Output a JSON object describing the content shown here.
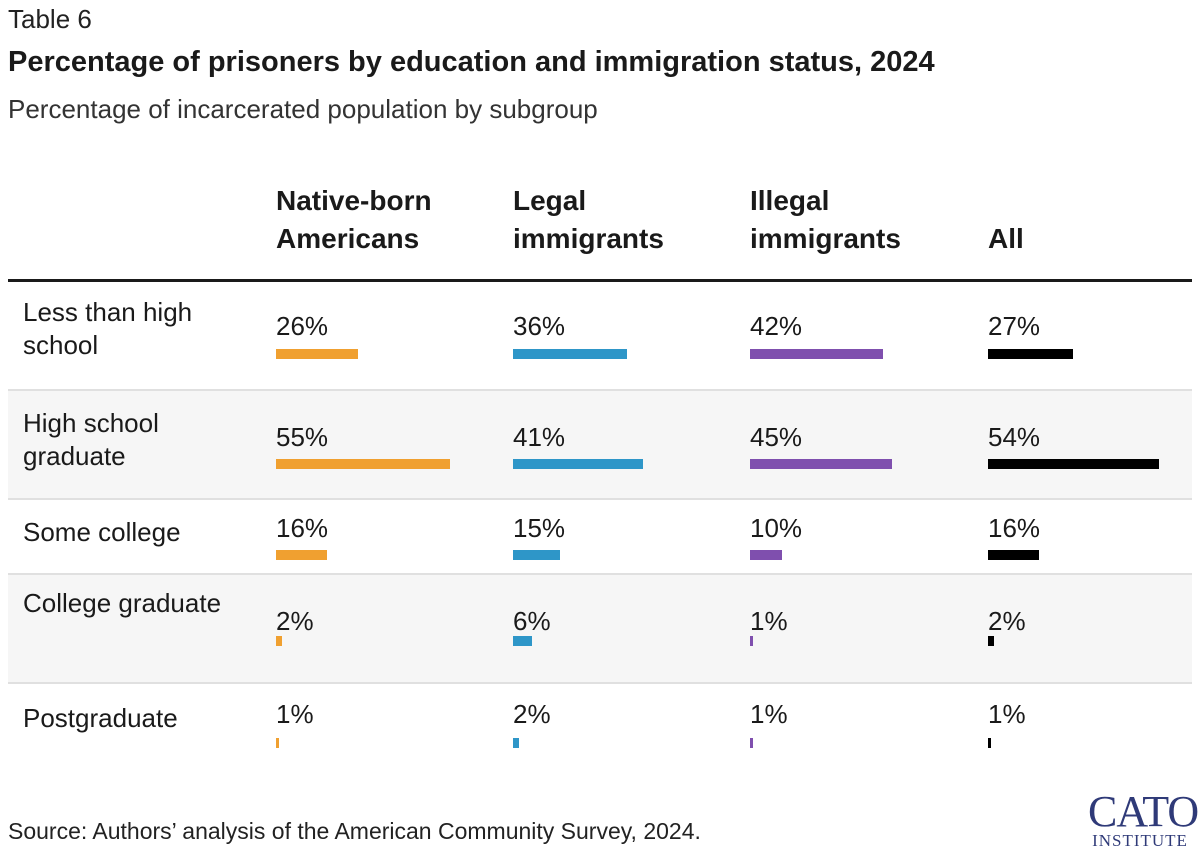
{
  "table_label": "Table 6",
  "title": "Percentage of prisoners by education and immigration status, 2024",
  "subtitle": "Percentage of incarcerated population by subgroup",
  "source": "Source: Authors’ analysis of the American Community Survey, 2024.",
  "logo": {
    "main": "CATO",
    "sub": "INSTITUTE"
  },
  "colors": {
    "native": "#f0a030",
    "legal": "#2e96c8",
    "illegal": "#7f4fae",
    "all": "#000000"
  },
  "chart_data": {
    "type": "table",
    "title": "Percentage of prisoners by education and immigration status, 2024",
    "subtitle": "Percentage of incarcerated population by subgroup",
    "columns": [
      {
        "line1": "Native-born",
        "line2": "Americans"
      },
      {
        "line1": "Legal",
        "line2": "immigrants"
      },
      {
        "line1": "Illegal",
        "line2": "immigrants"
      },
      {
        "line1": "",
        "line2": "All"
      }
    ],
    "rows": [
      {
        "label": "Less than high school",
        "cells": [
          {
            "text": "26%",
            "value": 26
          },
          {
            "text": "36%",
            "value": 36
          },
          {
            "text": "42%",
            "value": 42
          },
          {
            "text": "27%",
            "value": 27
          }
        ]
      },
      {
        "label": "High school graduate",
        "cells": [
          {
            "text": "55%",
            "value": 55
          },
          {
            "text": "41%",
            "value": 41
          },
          {
            "text": "45%",
            "value": 45
          },
          {
            "text": "54%",
            "value": 54
          }
        ]
      },
      {
        "label": "Some college",
        "cells": [
          {
            "text": "16%",
            "value": 16
          },
          {
            "text": "15%",
            "value": 15
          },
          {
            "text": "10%",
            "value": 10
          },
          {
            "text": "16%",
            "value": 16
          }
        ]
      },
      {
        "label": "College graduate",
        "cells": [
          {
            "text": "2%",
            "value": 2
          },
          {
            "text": "6%",
            "value": 6
          },
          {
            "text": "1%",
            "value": 1
          },
          {
            "text": "2%",
            "value": 2
          }
        ]
      },
      {
        "label": "Postgraduate",
        "cells": [
          {
            "text": "1%",
            "value": 1
          },
          {
            "text": "2%",
            "value": 2
          },
          {
            "text": "1%",
            "value": 1
          },
          {
            "text": "1%",
            "value": 1
          }
        ]
      }
    ],
    "bar_max_value": 55
  }
}
